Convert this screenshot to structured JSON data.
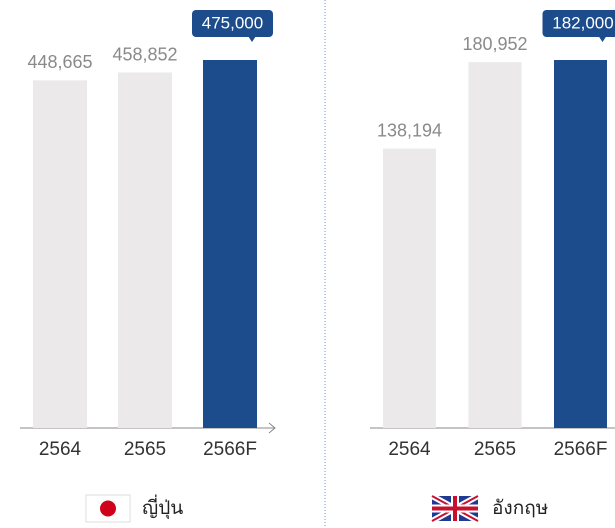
{
  "chart_data": [
    {
      "type": "bar",
      "label": "ญี่ปุ่น",
      "categories": [
        "2564",
        "2565",
        "2566F"
      ],
      "values": [
        448665,
        458852,
        475000
      ],
      "value_labels": [
        "448,665",
        "458,852",
        "475,000"
      ],
      "colors": [
        "#ebe9e9",
        "#ebe9e9",
        "#1c4c8c"
      ],
      "highlight": 2
    },
    {
      "type": "bar",
      "label": "อังกฤษ",
      "categories": [
        "2564",
        "2565",
        "2566F"
      ],
      "values": [
        138194,
        180952,
        182000
      ],
      "value_labels": [
        "138,194",
        "180,952",
        "182,000"
      ],
      "colors": [
        "#ebe9e9",
        "#ebe9e9",
        "#1c4c8c"
      ],
      "highlight": 2
    }
  ]
}
